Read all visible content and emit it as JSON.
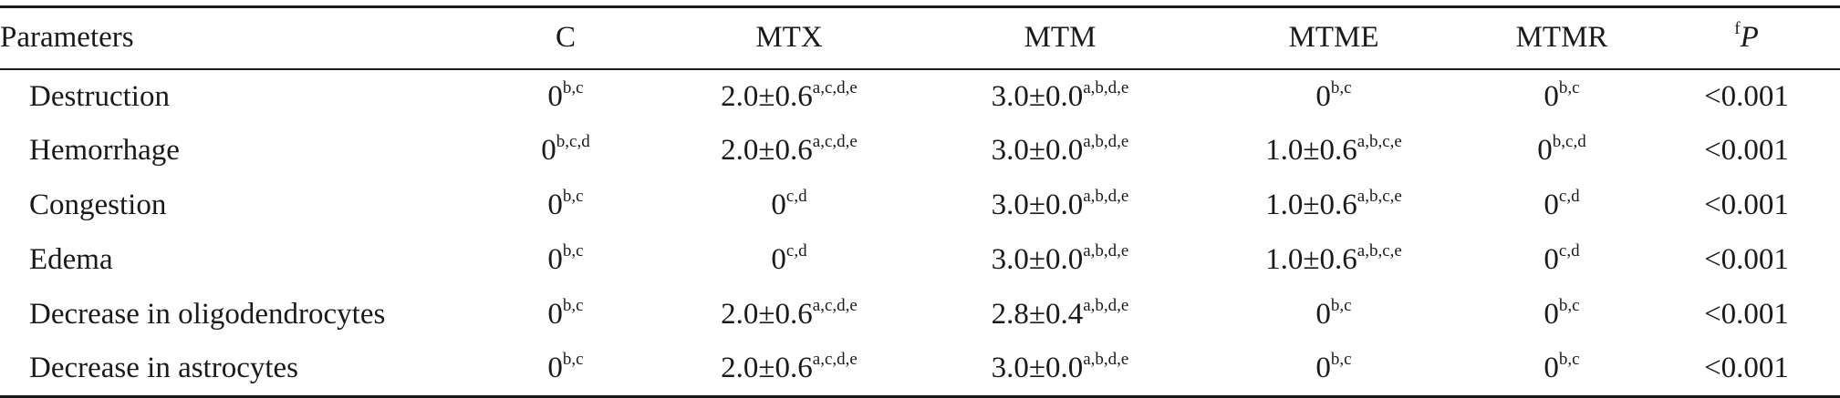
{
  "table": {
    "columns": [
      {
        "text": "Parameters",
        "sup": ""
      },
      {
        "text": "C",
        "sup": ""
      },
      {
        "text": "MTX",
        "sup": ""
      },
      {
        "text": "MTM",
        "sup": ""
      },
      {
        "text": "MTME",
        "sup": ""
      },
      {
        "text": "MTMR",
        "sup": ""
      },
      {
        "text": "P",
        "sup": "f"
      }
    ],
    "rows": [
      {
        "parameter": "Destruction",
        "cells": [
          {
            "value": "0",
            "sup": "b,c"
          },
          {
            "value": "2.0±0.6",
            "sup": "a,c,d,e"
          },
          {
            "value": "3.0±0.0",
            "sup": "a,b,d,e"
          },
          {
            "value": "0",
            "sup": "b,c"
          },
          {
            "value": "0",
            "sup": "b,c"
          }
        ],
        "p": "<0.001"
      },
      {
        "parameter": "Hemorrhage",
        "cells": [
          {
            "value": "0",
            "sup": "b,c,d"
          },
          {
            "value": "2.0±0.6",
            "sup": "a,c,d,e"
          },
          {
            "value": "3.0±0.0",
            "sup": "a,b,d,e"
          },
          {
            "value": "1.0±0.6",
            "sup": "a,b,c,e"
          },
          {
            "value": "0",
            "sup": "b,c,d"
          }
        ],
        "p": "<0.001"
      },
      {
        "parameter": "Congestion",
        "cells": [
          {
            "value": "0",
            "sup": "b,c"
          },
          {
            "value": "0",
            "sup": "c,d"
          },
          {
            "value": "3.0±0.0",
            "sup": "a,b,d,e"
          },
          {
            "value": "1.0±0.6",
            "sup": "a,b,c,e"
          },
          {
            "value": "0",
            "sup": "c,d"
          }
        ],
        "p": "<0.001"
      },
      {
        "parameter": "Edema",
        "cells": [
          {
            "value": "0",
            "sup": "b,c"
          },
          {
            "value": "0",
            "sup": "c,d"
          },
          {
            "value": "3.0±0.0",
            "sup": "a,b,d,e"
          },
          {
            "value": "1.0±0.6",
            "sup": "a,b,c,e"
          },
          {
            "value": "0",
            "sup": "c,d"
          }
        ],
        "p": "<0.001"
      },
      {
        "parameter": "Decrease in oligodendrocytes",
        "cells": [
          {
            "value": "0",
            "sup": "b,c"
          },
          {
            "value": "2.0±0.6",
            "sup": "a,c,d,e"
          },
          {
            "value": "2.8±0.4",
            "sup": "a,b,d,e"
          },
          {
            "value": "0",
            "sup": "b,c"
          },
          {
            "value": "0",
            "sup": "b,c"
          }
        ],
        "p": "<0.001"
      },
      {
        "parameter": "Decrease in astrocytes",
        "cells": [
          {
            "value": "0",
            "sup": "b,c"
          },
          {
            "value": "2.0±0.6",
            "sup": "a,c,d,e"
          },
          {
            "value": "3.0±0.0",
            "sup": "a,b,d,e"
          },
          {
            "value": "0",
            "sup": "b,c"
          },
          {
            "value": "0",
            "sup": "b,c"
          }
        ],
        "p": "<0.001"
      }
    ]
  }
}
